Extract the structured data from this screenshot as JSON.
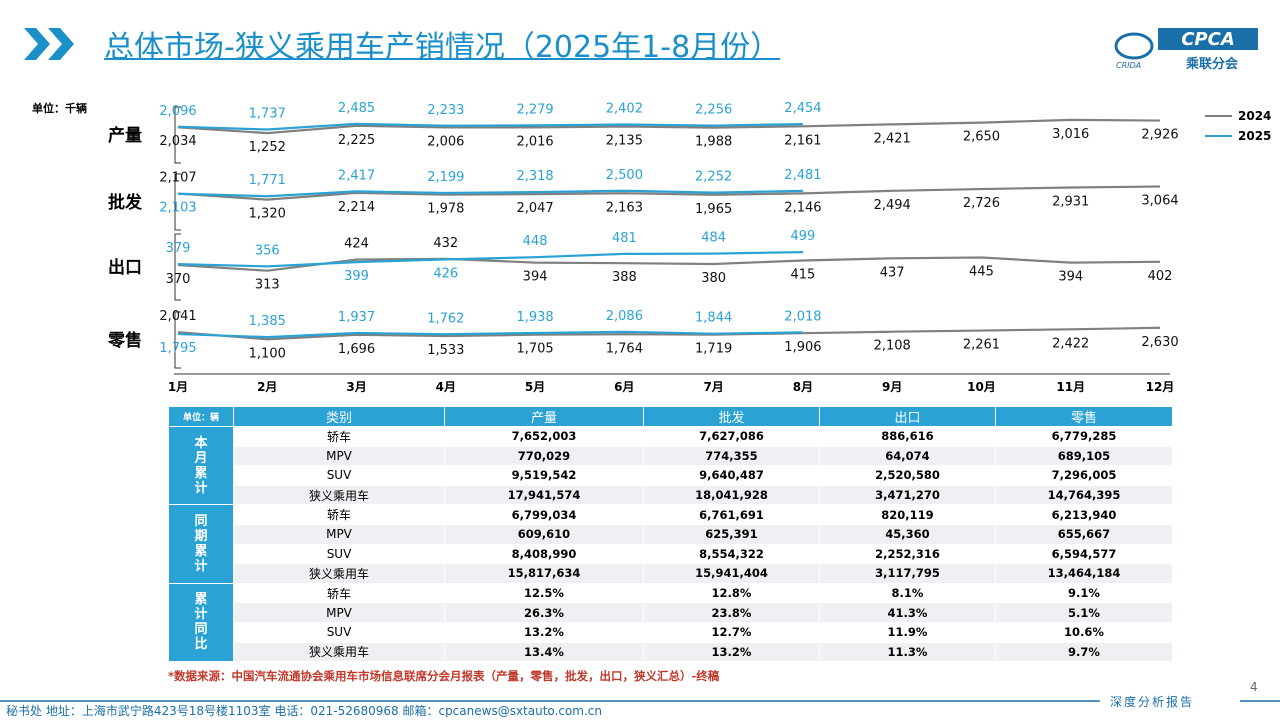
{
  "header": {
    "title": "总体市场-狭义乘用车产销情况（2025年1-8月份）",
    "logo": "CPCA",
    "logo_sub": "乘联分会",
    "logo_small": "CRIDA"
  },
  "unit_note": "单位：千辆",
  "chart_data": [
    {
      "type": "line",
      "label": "产量",
      "ylim": [
        -3000,
        5000
      ],
      "series": [
        {
          "name": "2024",
          "color": "#808080",
          "values": [
            2034,
            1252,
            2225,
            2006,
            2016,
            2135,
            1988,
            2161,
            2421,
            2650,
            3016,
            2926
          ],
          "value_labels": [
            "2,034",
            "1,252",
            "2,225",
            "2,006",
            "2,016",
            "2,135",
            "1,988",
            "2,161",
            "2,421",
            "2,650",
            "3,016",
            "2,926"
          ]
        },
        {
          "name": "2025",
          "color": "#2aa3d4",
          "values": [
            2096,
            1737,
            2485,
            2233,
            2279,
            2402,
            2256,
            2454,
            null,
            null,
            null,
            null
          ],
          "value_labels": [
            "2,096",
            "1,737",
            "2,485",
            "2,233",
            "2,279",
            "2,402",
            "2,256",
            "2,454",
            null,
            null,
            null,
            null
          ]
        }
      ]
    },
    {
      "type": "line",
      "label": "批发",
      "ylim": [
        -3000,
        5000
      ],
      "series": [
        {
          "color": "#808080",
          "values": [
            2107,
            1320,
            2214,
            1978,
            2047,
            2163,
            1965,
            2146,
            2494,
            2726,
            2931,
            3064
          ],
          "value_labels": [
            "2,107",
            "1,320",
            "2,214",
            "1,978",
            "2,047",
            "2,163",
            "1,965",
            "2,146",
            "2,494",
            "2,726",
            "2,931",
            "3,064"
          ]
        },
        {
          "color": "#2aa3d4",
          "values": [
            2103,
            1771,
            2417,
            2199,
            2318,
            2500,
            2252,
            2481,
            null,
            null,
            null,
            null
          ],
          "value_labels": [
            "2,103",
            "1,771",
            "2,417",
            "2,199",
            "2,318",
            "2,500",
            "2,252",
            "2,481",
            null,
            null,
            null,
            null
          ]
        }
      ]
    },
    {
      "type": "line",
      "label": "出口",
      "ylim": [
        0,
        700
      ],
      "series": [
        {
          "color": "#808080",
          "values": [
            370,
            313,
            424,
            432,
            394,
            388,
            380,
            415,
            437,
            445,
            394,
            402
          ]
        },
        {
          "color": "#2aa3d4",
          "values": [
            379,
            356,
            399,
            426,
            448,
            481,
            484,
            499,
            null,
            null,
            null,
            null
          ]
        }
      ]
    },
    {
      "type": "line",
      "label": "零售",
      "ylim": [
        -3000,
        5000
      ],
      "categories": [
        "1月",
        "2月",
        "3月",
        "4月",
        "5月",
        "6月",
        "7月",
        "8月",
        "9月",
        "10月",
        "11月",
        "12月"
      ],
      "series": [
        {
          "color": "#808080",
          "values": [
            2041,
            1100,
            1696,
            1533,
            1705,
            1764,
            1719,
            1906,
            2108,
            2261,
            2422,
            2630
          ],
          "value_labels": [
            "2,041",
            "1,100",
            "1,696",
            "1,533",
            "1,705",
            "1,764",
            "1,719",
            "1,906",
            "2,108",
            "2,261",
            "2,422",
            "2,630"
          ]
        },
        {
          "color": "#2aa3d4",
          "values": [
            1795,
            1385,
            1937,
            1762,
            1938,
            2086,
            1844,
            2018,
            null,
            null,
            null,
            null
          ],
          "value_labels": [
            "1,795",
            "1,385",
            "1,937",
            "1,762",
            "1,938",
            "2,086",
            "1,844",
            "2,018",
            null,
            null,
            null,
            null
          ]
        }
      ]
    }
  ],
  "table": {
    "header": [
      "单位：辆",
      "类别",
      "产量",
      "批发",
      "出口",
      "零售"
    ],
    "groups": [
      {
        "label": "本月累计",
        "rows": [
          [
            "轿车",
            "7,652,003",
            "7,627,086",
            "886,616",
            "6,779,285"
          ],
          [
            "MPV",
            "770,029",
            "774,355",
            "64,074",
            "689,105"
          ],
          [
            "SUV",
            "9,519,542",
            "9,640,487",
            "2,520,580",
            "7,296,005"
          ],
          [
            "狭义乘用车",
            "17,941,574",
            "18,041,928",
            "3,471,270",
            "14,764,395"
          ]
        ]
      },
      {
        "label": "同期累计",
        "rows": [
          [
            "轿车",
            "6,799,034",
            "6,761,691",
            "820,119",
            "6,213,940"
          ],
          [
            "MPV",
            "609,610",
            "625,391",
            "45,360",
            "655,667"
          ],
          [
            "SUV",
            "8,408,990",
            "8,554,322",
            "2,252,316",
            "6,594,577"
          ],
          [
            "狭义乘用车",
            "15,817,634",
            "15,941,404",
            "3,117,795",
            "13,464,184"
          ]
        ]
      },
      {
        "label": "累计同比",
        "rows": [
          [
            "轿车",
            "12.5%",
            "12.8%",
            "8.1%",
            "9.1%"
          ],
          [
            "MPV",
            "26.3%",
            "23.8%",
            "41.3%",
            "5.1%"
          ],
          [
            "SUV",
            "13.2%",
            "12.7%",
            "11.9%",
            "10.6%"
          ],
          [
            "狭义乘用车",
            "13.4%",
            "13.2%",
            "11.3%",
            "9.7%"
          ]
        ]
      }
    ]
  },
  "source_note": "*数据来源：中国汽车流通协会乘用车市场信息联席分会月报表（产量，零售，批发，出口，狭义汇总）-终稿",
  "page_number": "4",
  "footer": {
    "report": "深度分析报告",
    "address": "秘书处  地址：上海市武宁路423号18号楼1103室  电话：021-52680968  邮箱：cpcanews@sxtauto.com.cn"
  }
}
